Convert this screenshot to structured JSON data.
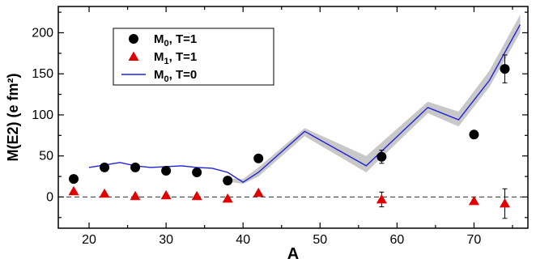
{
  "chart_data": {
    "type": "scatter",
    "xlabel": "A",
    "ylabel": "M(E2) (e fm²)",
    "xlim": [
      16,
      77
    ],
    "ylim": [
      -38,
      232
    ],
    "xticks": [
      20,
      30,
      40,
      50,
      60,
      70
    ],
    "yticks": [
      0,
      50,
      100,
      150,
      200
    ],
    "grid": false,
    "legend_position": "top-left",
    "reference_line_y": 0,
    "band": {
      "color": "#c8c8c8",
      "x": [
        38,
        40,
        42,
        48,
        56,
        64,
        68,
        72,
        76
      ],
      "lower": [
        19,
        16,
        25,
        74,
        30,
        102,
        86,
        134,
        200
      ],
      "upper": [
        23,
        22,
        36,
        84,
        50,
        116,
        104,
        154,
        222
      ]
    },
    "series": [
      {
        "name": "M0, T=1",
        "legend_main": "M",
        "legend_sub": "0",
        "legend_rest": ", T=1",
        "kind": "points",
        "marker": "circle",
        "color": "#000000",
        "x": [
          18,
          22,
          26,
          30,
          34,
          38,
          42,
          58,
          70,
          74
        ],
        "y": [
          22,
          36,
          36,
          32,
          30,
          20,
          47,
          49,
          76,
          156
        ],
        "err": [
          0,
          0,
          0,
          0,
          0,
          0,
          0,
          8,
          0,
          17
        ]
      },
      {
        "name": "M1, T=1",
        "legend_main": "M",
        "legend_sub": "1",
        "legend_rest": ", T=1",
        "kind": "points",
        "marker": "triangle",
        "color": "#e00000",
        "x": [
          18,
          22,
          26,
          30,
          34,
          38,
          42,
          58,
          70,
          74
        ],
        "y": [
          7,
          4,
          1,
          2,
          1,
          -2,
          5,
          -3,
          -5,
          -8
        ],
        "err": [
          0,
          0,
          0,
          0,
          0,
          0,
          0,
          9,
          0,
          18
        ]
      },
      {
        "name": "M0, T=0",
        "legend_main": "M",
        "legend_sub": "0",
        "legend_rest": ", T=0",
        "kind": "line",
        "color": "#2020dd",
        "x": [
          20,
          22,
          24,
          26,
          28,
          30,
          32,
          34,
          36,
          38,
          40,
          42,
          48,
          56,
          64,
          68,
          72,
          76
        ],
        "y": [
          36,
          39,
          42,
          38,
          36,
          37,
          38,
          36,
          35,
          30,
          18,
          30,
          80,
          38,
          109,
          94,
          142,
          210
        ]
      }
    ]
  }
}
